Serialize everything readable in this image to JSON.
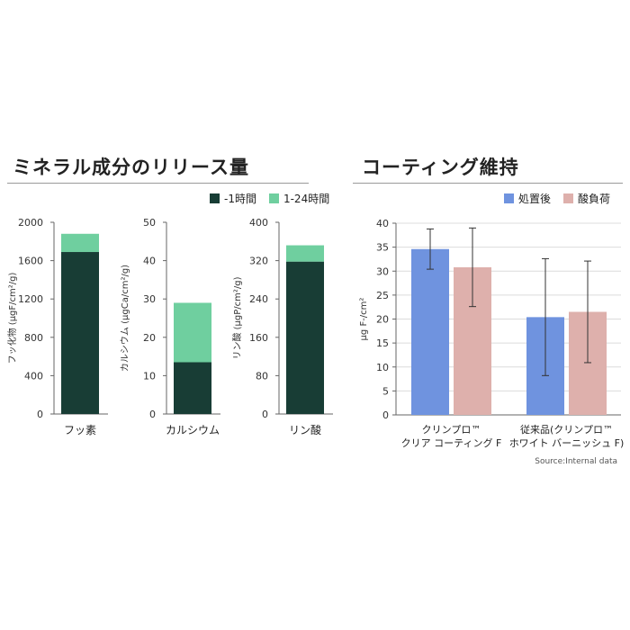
{
  "left": {
    "title": "ミネラル成分のリリース量",
    "legend": [
      {
        "label": "-1時間",
        "color": "#183d35"
      },
      {
        "label": "1-24時間",
        "color": "#6fcf9f"
      }
    ]
  },
  "right": {
    "title": "コーティング維持",
    "legend": [
      {
        "label": "処置後",
        "color": "#6f93df"
      },
      {
        "label": "酸負荷",
        "color": "#deb0ac"
      }
    ],
    "source": "Source:Internal data"
  },
  "chart_data": [
    {
      "type": "bar",
      "stacked": true,
      "categories": [
        "フッ素"
      ],
      "series": [
        {
          "name": "-1時間",
          "values": [
            1690
          ]
        },
        {
          "name": "1-24時間",
          "values": [
            190
          ]
        }
      ],
      "ylabel": "フッ化物 (μgF/cm²/g)",
      "ylim": [
        0,
        2000
      ],
      "yticks": [
        "0",
        "400",
        "800",
        "1200",
        "1600",
        "2000"
      ],
      "ytick_values": [
        0,
        400,
        800,
        1200,
        1600,
        2000
      ]
    },
    {
      "type": "bar",
      "stacked": true,
      "categories": [
        "カルシウム"
      ],
      "series": [
        {
          "name": "-1時間",
          "values": [
            13.5
          ]
        },
        {
          "name": "1-24時間",
          "values": [
            15.5
          ]
        }
      ],
      "ylabel": "カルシウム (μgCa/cm²/g)",
      "ylim": [
        0,
        50
      ],
      "yticks": [
        "0",
        "10",
        "20",
        "30",
        "40",
        "50"
      ],
      "ytick_values": [
        0,
        10,
        20,
        30,
        40,
        50
      ]
    },
    {
      "type": "bar",
      "stacked": true,
      "categories": [
        "リン酸"
      ],
      "series": [
        {
          "name": "-1時間",
          "values": [
            318
          ]
        },
        {
          "name": "1-24時間",
          "values": [
            34
          ]
        }
      ],
      "ylabel": "リン酸 (μgP/cm²/g)",
      "ylim": [
        0,
        400
      ],
      "yticks": [
        "0",
        "80",
        "160",
        "240",
        "320",
        "400"
      ],
      "ytick_values": [
        0,
        80,
        160,
        240,
        320,
        400
      ]
    },
    {
      "type": "bar",
      "categories": [
        [
          "クリンプロ™",
          "クリア コーティング F"
        ],
        [
          "従来品(クリンプロ™",
          "ホワイト バーニッシュ F)"
        ]
      ],
      "series": [
        {
          "name": "処置後",
          "values": [
            34.6,
            20.4
          ],
          "error": [
            4.2,
            12.2
          ]
        },
        {
          "name": "酸負荷",
          "values": [
            30.8,
            21.5
          ],
          "error": [
            8.2,
            10.6
          ]
        }
      ],
      "ylabel": "μg F-/cm²",
      "ylim": [
        0,
        40
      ],
      "yticks": [
        "0",
        "5",
        "10",
        "15",
        "20",
        "25",
        "30",
        "35",
        "40"
      ],
      "ytick_values": [
        0,
        5,
        10,
        15,
        20,
        25,
        30,
        35,
        40
      ],
      "grid": true
    }
  ]
}
